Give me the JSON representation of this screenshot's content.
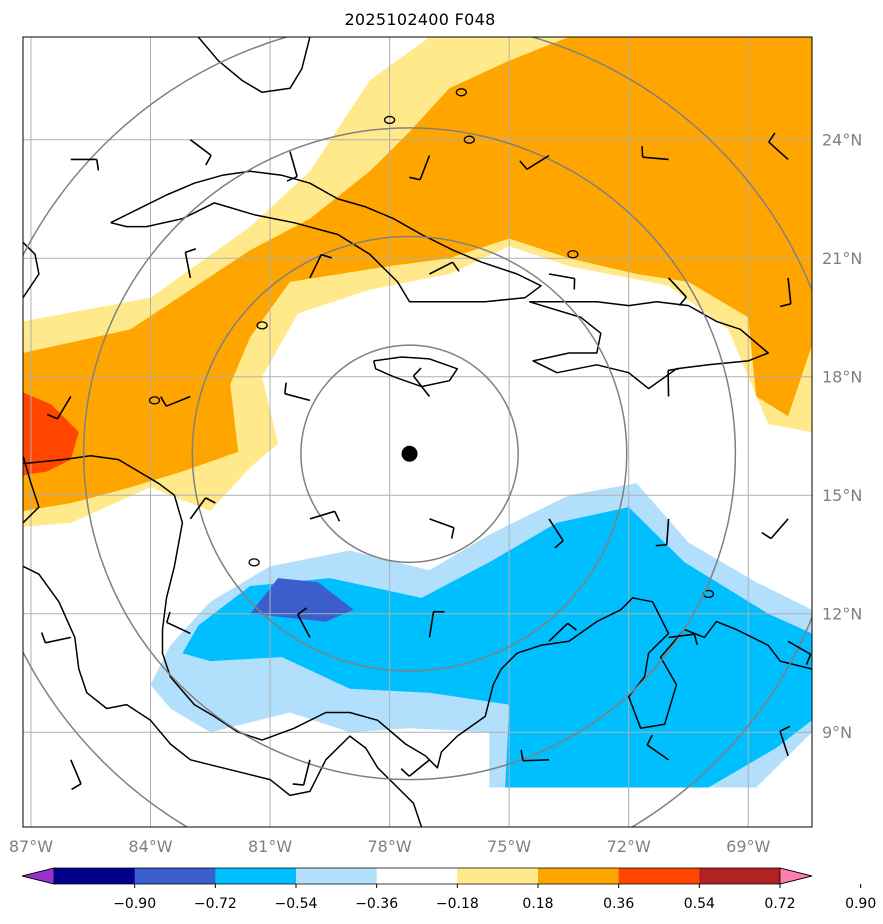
{
  "title": "2025102400 F048",
  "map": {
    "lon_range": [
      -87.2,
      -67.4
    ],
    "lat_range": [
      6.6,
      26.6
    ],
    "lon_ticks": [
      {
        "value": -87,
        "label": "87°W"
      },
      {
        "value": -84,
        "label": "84°W"
      },
      {
        "value": -81,
        "label": "81°W"
      },
      {
        "value": -78,
        "label": "78°W"
      },
      {
        "value": -75,
        "label": "75°W"
      },
      {
        "value": -72,
        "label": "72°W"
      },
      {
        "value": -69,
        "label": "69°W"
      }
    ],
    "lat_ticks": [
      {
        "value": 24,
        "label": "24°N"
      },
      {
        "value": 21,
        "label": "21°N"
      },
      {
        "value": 18,
        "label": "18°N"
      },
      {
        "value": 15,
        "label": "15°N"
      },
      {
        "value": 12,
        "label": "12°N"
      },
      {
        "value": 9,
        "label": "9°N"
      }
    ],
    "storm_center": {
      "lon": -77.5,
      "lat": 16.05
    },
    "range_rings_deg": [
      2.75,
      5.5,
      8.25,
      11
    ],
    "colors": {
      "grid": "#b0b0b0",
      "rings": "#808080",
      "coast": "#000000",
      "tick_label": "#808080"
    }
  },
  "colorbar": {
    "levels": [
      "−0.90",
      "−0.72",
      "−0.54",
      "−0.36",
      "−0.18",
      "0.18",
      "0.36",
      "0.54",
      "0.72",
      "0.90"
    ],
    "colors": [
      "#9932cc",
      "#00008b",
      "#3a5fcd",
      "#00bfff",
      "#b2dffc",
      "#ffffff",
      "#ffe98a",
      "#ffa500",
      "#ff4500",
      "#b22222",
      "#ff80b0"
    ]
  },
  "fields": {
    "positive_band": {
      "level_0_18_to_0_36": [
        [
          -87.2,
          19.4
        ],
        [
          -84,
          20.0
        ],
        [
          -81.5,
          21.8
        ],
        [
          -80,
          23.2
        ],
        [
          -78.5,
          25.5
        ],
        [
          -77,
          26.6
        ],
        [
          -67.4,
          26.6
        ],
        [
          -67.4,
          16.6
        ],
        [
          -68.5,
          16.8
        ],
        [
          -69.5,
          19.2
        ],
        [
          -71,
          20.3
        ],
        [
          -73.5,
          20.8
        ],
        [
          -75,
          21.3
        ],
        [
          -76.5,
          20.6
        ],
        [
          -78.5,
          20.2
        ],
        [
          -80.3,
          19.6
        ],
        [
          -81.2,
          18.0
        ],
        [
          -80.8,
          16.3
        ],
        [
          -81.5,
          15.7
        ],
        [
          -82.5,
          14.6
        ],
        [
          -84,
          15.2
        ],
        [
          -86,
          14.3
        ],
        [
          -87.2,
          14.2
        ]
      ],
      "level_0_36_to_0_54": [
        [
          -87.2,
          18.6
        ],
        [
          -84.5,
          19.2
        ],
        [
          -83,
          20.2
        ],
        [
          -81.5,
          21.2
        ],
        [
          -80,
          22.0
        ],
        [
          -78.5,
          23.2
        ],
        [
          -77.5,
          24.2
        ],
        [
          -76.5,
          25.3
        ],
        [
          -75,
          26.0
        ],
        [
          -73.5,
          26.6
        ],
        [
          -67.4,
          26.6
        ],
        [
          -67.4,
          18.8
        ],
        [
          -68,
          17.0
        ],
        [
          -68.8,
          17.5
        ],
        [
          -69,
          19.5
        ],
        [
          -70.5,
          20.4
        ],
        [
          -71.8,
          20.6
        ],
        [
          -73.5,
          21.0
        ],
        [
          -75,
          21.5
        ],
        [
          -76.5,
          21.0
        ],
        [
          -78,
          20.8
        ],
        [
          -80.5,
          20.4
        ],
        [
          -81.5,
          19.0
        ],
        [
          -82,
          17.8
        ],
        [
          -81.8,
          16.1
        ],
        [
          -83.2,
          15.6
        ],
        [
          -84.5,
          15.2
        ],
        [
          -86,
          14.8
        ],
        [
          -87.2,
          14.6
        ]
      ],
      "level_0_54_to_0_72": [
        [
          -87.2,
          17.6
        ],
        [
          -86.5,
          17.3
        ],
        [
          -85.8,
          16.6
        ],
        [
          -86.0,
          15.9
        ],
        [
          -86.6,
          15.6
        ],
        [
          -87.2,
          15.5
        ]
      ]
    },
    "negative_region": {
      "level_neg_0_36_to_neg_0_18": [
        [
          -83.5,
          11.2
        ],
        [
          -82.5,
          12.3
        ],
        [
          -81,
          13.2
        ],
        [
          -79,
          13.6
        ],
        [
          -77,
          13.1
        ],
        [
          -75.5,
          14.0
        ],
        [
          -73.5,
          15.0
        ],
        [
          -71.8,
          15.3
        ],
        [
          -70.5,
          13.8
        ],
        [
          -68.8,
          12.8
        ],
        [
          -67.4,
          12.1
        ],
        [
          -67.4,
          9.0
        ],
        [
          -68.8,
          7.6
        ],
        [
          -69.8,
          7.6
        ],
        [
          -75.5,
          7.6
        ],
        [
          -75.5,
          9.0
        ],
        [
          -77.5,
          9.1
        ],
        [
          -79,
          9.0
        ],
        [
          -80.5,
          9.5
        ],
        [
          -82.5,
          9.0
        ],
        [
          -83.5,
          9.6
        ],
        [
          -84,
          10.2
        ]
      ],
      "level_neg_0_54_to_neg_0_36": [
        [
          -82.8,
          11.7
        ],
        [
          -81.5,
          12.7
        ],
        [
          -79.5,
          12.9
        ],
        [
          -77.2,
          12.4
        ],
        [
          -75.5,
          13.3
        ],
        [
          -73.8,
          14.3
        ],
        [
          -72.0,
          14.7
        ],
        [
          -70.6,
          13.3
        ],
        [
          -68.5,
          12.0
        ],
        [
          -67.4,
          11.5
        ],
        [
          -67.4,
          9.3
        ],
        [
          -68.3,
          8.6
        ],
        [
          -70,
          7.6
        ],
        [
          -75.1,
          7.6
        ],
        [
          -75.0,
          9.7
        ],
        [
          -77.0,
          10.0
        ],
        [
          -79.0,
          10.1
        ],
        [
          -80.7,
          10.9
        ],
        [
          -82.5,
          10.8
        ],
        [
          -83.2,
          11.0
        ]
      ],
      "level_neg_0_72_to_neg_0_54": [
        [
          -81.5,
          12.0
        ],
        [
          -80.8,
          12.9
        ],
        [
          -79.8,
          12.8
        ],
        [
          -78.9,
          12.1
        ],
        [
          -79.6,
          11.8
        ]
      ]
    }
  },
  "coastlines": {
    "central_america": [
      [
        -87.2,
        15.8
      ],
      [
        -86.2,
        15.9
      ],
      [
        -85.5,
        16.0
      ],
      [
        -84.8,
        15.9
      ],
      [
        -84.3,
        15.6
      ],
      [
        -83.8,
        15.3
      ],
      [
        -83.4,
        15.0
      ],
      [
        -83.2,
        14.3
      ],
      [
        -83.4,
        13.2
      ],
      [
        -83.6,
        12.4
      ],
      [
        -83.7,
        11.6
      ],
      [
        -83.7,
        11.0
      ],
      [
        -83.5,
        10.4
      ],
      [
        -82.9,
        9.7
      ],
      [
        -82.4,
        9.4
      ],
      [
        -81.8,
        9.0
      ],
      [
        -81.2,
        8.8
      ],
      [
        -80.4,
        9.1
      ],
      [
        -79.6,
        9.5
      ],
      [
        -79.0,
        9.5
      ],
      [
        -78.3,
        9.3
      ],
      [
        -77.6,
        8.7
      ],
      [
        -77.1,
        8.4
      ],
      [
        -76.8,
        8.1
      ],
      [
        -76.7,
        8.5
      ],
      [
        -76.3,
        8.9
      ],
      [
        -75.6,
        9.4
      ],
      [
        -75.4,
        10.2
      ],
      [
        -75.2,
        10.6
      ],
      [
        -74.8,
        11.0
      ],
      [
        -74.2,
        11.2
      ],
      [
        -73.5,
        11.3
      ],
      [
        -72.8,
        11.8
      ],
      [
        -72.2,
        12.1
      ],
      [
        -71.9,
        12.4
      ],
      [
        -71.4,
        12.3
      ],
      [
        -71.0,
        11.5
      ],
      [
        -71.5,
        11.0
      ],
      [
        -71.6,
        10.4
      ],
      [
        -72.0,
        9.9
      ],
      [
        -71.7,
        9.1
      ],
      [
        -71.1,
        9.2
      ],
      [
        -70.8,
        10.2
      ],
      [
        -71.2,
        10.9
      ],
      [
        -70.6,
        11.6
      ],
      [
        -70.1,
        11.4
      ],
      [
        -69.8,
        11.8
      ],
      [
        -69.3,
        11.6
      ],
      [
        -68.5,
        11.2
      ],
      [
        -68.2,
        10.8
      ],
      [
        -67.4,
        10.6
      ]
    ],
    "pacific_side": [
      [
        -87.2,
        13.2
      ],
      [
        -86.8,
        13.0
      ],
      [
        -86.3,
        12.3
      ],
      [
        -85.9,
        11.4
      ],
      [
        -85.8,
        10.6
      ],
      [
        -85.6,
        10.0
      ],
      [
        -85.1,
        9.6
      ],
      [
        -84.6,
        9.7
      ],
      [
        -84.0,
        9.3
      ],
      [
        -83.5,
        8.7
      ],
      [
        -83.0,
        8.3
      ],
      [
        -82.6,
        8.2
      ],
      [
        -81.8,
        8.0
      ],
      [
        -81.0,
        7.8
      ],
      [
        -80.5,
        7.4
      ],
      [
        -80.0,
        7.5
      ],
      [
        -79.6,
        8.3
      ],
      [
        -79.0,
        8.9
      ],
      [
        -78.6,
        8.6
      ],
      [
        -78.3,
        8.1
      ],
      [
        -77.8,
        7.6
      ],
      [
        -77.4,
        7.2
      ],
      [
        -77.2,
        6.6
      ]
    ],
    "cuba": [
      [
        -85.0,
        21.9
      ],
      [
        -84.4,
        22.2
      ],
      [
        -83.6,
        22.6
      ],
      [
        -82.9,
        22.9
      ],
      [
        -82.2,
        23.1
      ],
      [
        -81.5,
        23.2
      ],
      [
        -80.7,
        23.1
      ],
      [
        -80.0,
        22.9
      ],
      [
        -79.3,
        22.5
      ],
      [
        -78.6,
        22.3
      ],
      [
        -77.9,
        22.0
      ],
      [
        -77.2,
        21.6
      ],
      [
        -76.4,
        21.2
      ],
      [
        -75.7,
        20.9
      ],
      [
        -74.8,
        20.6
      ],
      [
        -74.2,
        20.3
      ],
      [
        -74.6,
        20.0
      ],
      [
        -75.6,
        19.9
      ],
      [
        -76.7,
        19.9
      ],
      [
        -77.5,
        19.9
      ],
      [
        -77.8,
        20.4
      ],
      [
        -78.5,
        21.1
      ],
      [
        -79.3,
        21.6
      ],
      [
        -80.4,
        21.9
      ],
      [
        -81.4,
        22.1
      ],
      [
        -82.4,
        22.4
      ],
      [
        -83.2,
        22.0
      ],
      [
        -84.1,
        21.8
      ],
      [
        -84.6,
        21.8
      ],
      [
        -85.0,
        21.9
      ]
    ],
    "jamaica": [
      [
        -78.4,
        18.4
      ],
      [
        -77.7,
        18.5
      ],
      [
        -77.0,
        18.45
      ],
      [
        -76.3,
        18.2
      ],
      [
        -76.5,
        17.9
      ],
      [
        -77.2,
        17.75
      ],
      [
        -77.9,
        18.0
      ],
      [
        -78.35,
        18.2
      ],
      [
        -78.4,
        18.4
      ]
    ],
    "hispaniola": [
      [
        -74.5,
        19.9
      ],
      [
        -73.5,
        19.9
      ],
      [
        -72.8,
        19.9
      ],
      [
        -72.0,
        19.8
      ],
      [
        -71.3,
        19.9
      ],
      [
        -70.5,
        19.8
      ],
      [
        -69.8,
        19.4
      ],
      [
        -69.2,
        19.2
      ],
      [
        -68.5,
        18.6
      ],
      [
        -69.0,
        18.4
      ],
      [
        -70.0,
        18.3
      ],
      [
        -70.8,
        18.2
      ],
      [
        -71.5,
        17.7
      ],
      [
        -72.0,
        18.1
      ],
      [
        -72.8,
        18.3
      ],
      [
        -73.8,
        18.1
      ],
      [
        -74.4,
        18.4
      ],
      [
        -73.5,
        18.6
      ],
      [
        -72.8,
        18.6
      ],
      [
        -72.7,
        19.1
      ],
      [
        -73.2,
        19.5
      ],
      [
        -74.5,
        19.9
      ]
    ],
    "puerto_rico": [
      [
        -67.4,
        18.5
      ],
      [
        -67.2,
        18.5
      ],
      [
        -66.8,
        18.45
      ]
    ],
    "florida": [
      [
        -82.8,
        26.6
      ],
      [
        -82.3,
        26.0
      ],
      [
        -81.7,
        25.5
      ],
      [
        -81.2,
        25.2
      ],
      [
        -80.5,
        25.3
      ],
      [
        -80.2,
        25.8
      ],
      [
        -80.0,
        26.6
      ]
    ],
    "yucatan": [
      [
        -87.2,
        21.4
      ],
      [
        -86.9,
        21.1
      ],
      [
        -86.8,
        20.6
      ],
      [
        -87.2,
        20.0
      ]
    ],
    "honduras_gulf": [
      [
        -87.2,
        16.0
      ],
      [
        -87.0,
        15.3
      ],
      [
        -86.8,
        14.7
      ],
      [
        -87.2,
        14.3
      ]
    ]
  },
  "islands": [
    {
      "name": "great_inagua",
      "lon": -73.4,
      "lat": 21.1
    },
    {
      "name": "andros",
      "lon": -78.0,
      "lat": 24.5
    },
    {
      "name": "eleuthera",
      "lon": -76.2,
      "lat": 25.2
    },
    {
      "name": "exuma",
      "lon": -76.0,
      "lat": 24.0
    },
    {
      "name": "cayman",
      "lon": -81.2,
      "lat": 19.3
    },
    {
      "name": "swan",
      "lon": -83.9,
      "lat": 17.4
    },
    {
      "name": "providencia",
      "lon": -81.4,
      "lat": 13.3
    },
    {
      "name": "aruba",
      "lon": -70.0,
      "lat": 12.5
    }
  ],
  "wind_barbs": [
    {
      "lon": -86.0,
      "lat": 23.5
    },
    {
      "lon": -83.0,
      "lat": 24.0
    },
    {
      "lon": -80.5,
      "lat": 23.7
    },
    {
      "lon": -77.0,
      "lat": 23.6
    },
    {
      "lon": -74.0,
      "lat": 23.6
    },
    {
      "lon": -71.0,
      "lat": 23.5
    },
    {
      "lon": -68.0,
      "lat": 23.5
    },
    {
      "lon": -83.0,
      "lat": 20.5
    },
    {
      "lon": -80.0,
      "lat": 20.5
    },
    {
      "lon": -77.0,
      "lat": 20.6
    },
    {
      "lon": -74.0,
      "lat": 20.6
    },
    {
      "lon": -71.0,
      "lat": 20.5
    },
    {
      "lon": -68.0,
      "lat": 20.5
    },
    {
      "lon": -86.0,
      "lat": 17.5
    },
    {
      "lon": -83.0,
      "lat": 17.5
    },
    {
      "lon": -80.0,
      "lat": 17.4
    },
    {
      "lon": -77.0,
      "lat": 17.5
    },
    {
      "lon": -71.0,
      "lat": 17.5
    },
    {
      "lon": -83.0,
      "lat": 14.4
    },
    {
      "lon": -80.0,
      "lat": 14.4
    },
    {
      "lon": -77.0,
      "lat": 14.4
    },
    {
      "lon": -74.0,
      "lat": 14.4
    },
    {
      "lon": -71.0,
      "lat": 14.4
    },
    {
      "lon": -68.0,
      "lat": 14.4
    },
    {
      "lon": -86.0,
      "lat": 11.4
    },
    {
      "lon": -83.0,
      "lat": 11.5
    },
    {
      "lon": -80.0,
      "lat": 11.4
    },
    {
      "lon": -77.0,
      "lat": 11.4
    },
    {
      "lon": -74.0,
      "lat": 11.3
    },
    {
      "lon": -71.0,
      "lat": 11.4
    },
    {
      "lon": -68.0,
      "lat": 11.3
    },
    {
      "lon": -86.0,
      "lat": 8.3
    },
    {
      "lon": -80.0,
      "lat": 8.3
    },
    {
      "lon": -77.0,
      "lat": 8.3
    },
    {
      "lon": -74.0,
      "lat": 8.3
    },
    {
      "lon": -71.0,
      "lat": 8.3
    },
    {
      "lon": -68.0,
      "lat": 8.4
    }
  ]
}
